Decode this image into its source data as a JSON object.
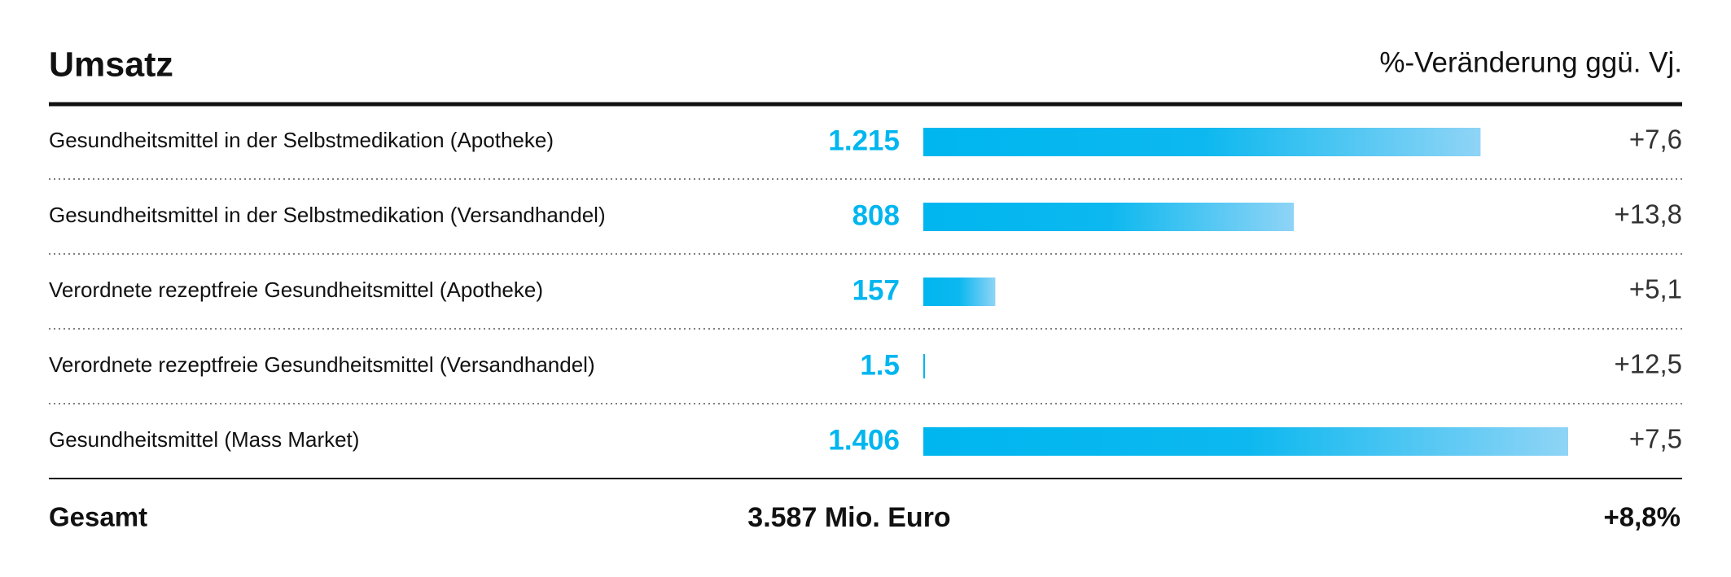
{
  "chart_data": {
    "type": "bar",
    "title": "Umsatz",
    "subtitle": "%-Veränderung ggü. Vj.",
    "categories": [
      "Gesundheitsmittel in der Selbstmedikation (Apotheke)",
      "Gesundheitsmittel in der Selbstmedikation (Versandhandel)",
      "Verordnete rezeptfreie Gesundheitsmittel (Apotheke)",
      "Verordnete rezeptfreie Gesundheitsmittel (Versandhandel)",
      "Gesundheitsmittel (Mass Market)"
    ],
    "values": [
      1215,
      808,
      157,
      1.5,
      1406
    ],
    "value_labels": [
      "1.215",
      "808",
      "157",
      "1.5",
      "1.406"
    ],
    "color": "#00b6ef",
    "change_values": [
      7.6,
      13.8,
      5.1,
      12.5,
      7.5
    ],
    "change_labels": [
      "+7,6",
      "+13,8",
      "+5,1",
      "+12,5",
      "+7,5"
    ],
    "total_label": "Gesamt",
    "total_value": 3587,
    "total_value_label": "3.587 Mio. Euro",
    "total_change": 8.8,
    "total_change_label": "+8,8%"
  }
}
